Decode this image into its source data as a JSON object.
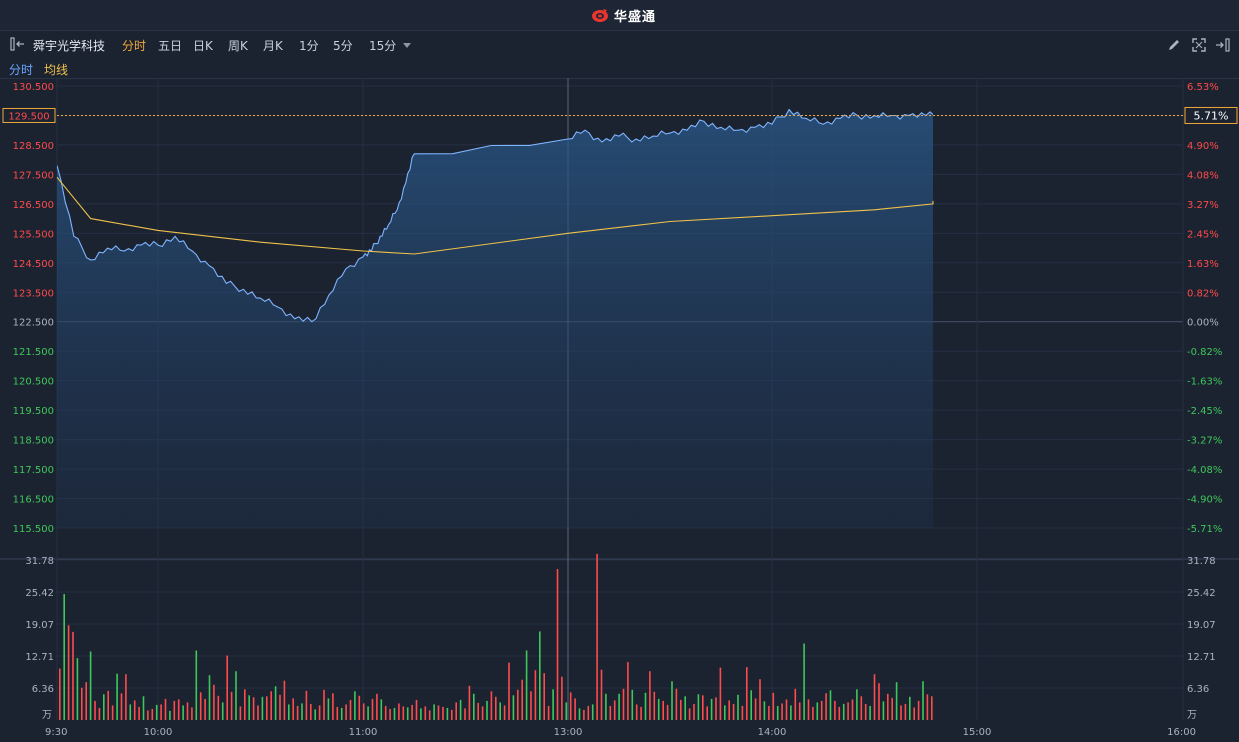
{
  "app": {
    "brand_name": "华盛通"
  },
  "toolbar": {
    "stock_name": "舜宇光学科技",
    "periods": [
      "分时",
      "五日",
      "日K",
      "周K",
      "月K",
      "1分",
      "5分",
      "15分"
    ],
    "active_period": "分时"
  },
  "legend": {
    "price_line": "分时",
    "avg_line": "均线"
  },
  "cursor": {
    "price_label": "129.500",
    "pct_label": "5.71%"
  },
  "colors": {
    "up": "#ff4b4b",
    "down": "#3ec85a",
    "price_line": "#7fb4ff",
    "avg_line": "#f0c24a",
    "accent": "#f0a93a"
  },
  "chart_data": [
    {
      "type": "line",
      "price_axis_left": [
        "130.500",
        "129.500",
        "128.500",
        "127.500",
        "126.500",
        "125.500",
        "124.500",
        "123.500",
        "122.500",
        "121.500",
        "120.500",
        "119.500",
        "118.500",
        "117.500",
        "116.500",
        "115.500"
      ],
      "pct_axis_right": [
        "6.53%",
        "5.71%",
        "4.90%",
        "4.08%",
        "3.27%",
        "2.45%",
        "1.63%",
        "0.82%",
        "0.00%",
        "-0.82%",
        "-1.63%",
        "-2.45%",
        "-3.27%",
        "-4.08%",
        "-4.90%",
        "-5.71%"
      ],
      "ylim": [
        115.5,
        130.5
      ],
      "prev_close": 122.5,
      "x_ticks": [
        "9:30",
        "10:00",
        "11:00",
        "13:00",
        "14:00",
        "15:00",
        "16:00"
      ],
      "series": [
        {
          "name": "分时",
          "x": [
            "9:30",
            "9:35",
            "9:40",
            "9:45",
            "9:50",
            "9:55",
            "10:00",
            "10:05",
            "10:10",
            "10:15",
            "10:20",
            "10:25",
            "10:30",
            "10:35",
            "10:40",
            "10:45",
            "10:50",
            "10:55",
            "11:00",
            "11:05",
            "11:10",
            "11:15",
            "11:20",
            "11:25",
            "11:30",
            "13:00",
            "13:05",
            "13:10",
            "13:15",
            "13:20",
            "13:25",
            "13:30",
            "13:35",
            "13:40",
            "13:45",
            "13:50",
            "13:55",
            "14:00",
            "14:05",
            "14:10",
            "14:15",
            "14:20",
            "14:25",
            "14:30",
            "14:35",
            "14:40",
            "14:45",
            "14:50",
            "14:55",
            "15:00",
            "15:05",
            "15:10",
            "15:15",
            "15:20",
            "15:25",
            "15:30",
            "15:35",
            "15:40",
            "15:45"
          ],
          "values": [
            127.8,
            125.4,
            124.6,
            125.0,
            124.9,
            125.1,
            125.1,
            125.4,
            124.9,
            124.4,
            123.8,
            123.6,
            123.3,
            123.0,
            122.6,
            122.5,
            123.4,
            124.3,
            124.7,
            124.9,
            125.4,
            125.8,
            126.3,
            127.2,
            128.2,
            128.7,
            129.0,
            128.6,
            128.8,
            128.7,
            128.8,
            128.9,
            129.0,
            129.3,
            129.1,
            129.0,
            129.1,
            129.2,
            129.7,
            129.4,
            129.2,
            129.4,
            129.5,
            129.5,
            129.5,
            129.5,
            129.5,
            129.5,
            129.5,
            129.5,
            129.5,
            129.5,
            129.5,
            129.5,
            129.5,
            129.5,
            129.5,
            129.5,
            129.5
          ]
        },
        {
          "name": "均线",
          "x": [
            "9:30",
            "9:40",
            "10:00",
            "10:30",
            "11:00",
            "11:30",
            "13:00",
            "13:30",
            "14:00",
            "14:30",
            "15:00",
            "15:45"
          ],
          "values": [
            127.4,
            126.0,
            125.6,
            125.2,
            124.9,
            124.8,
            125.5,
            125.9,
            126.1,
            126.3,
            126.5,
            126.6
          ]
        }
      ]
    },
    {
      "type": "bar",
      "y_ticks": [
        "31.78",
        "25.42",
        "19.07",
        "12.71",
        "6.36"
      ],
      "unit": "万",
      "ylim": [
        0,
        31.78
      ],
      "values": [
        10.2,
        25,
        18.8,
        17.5,
        12.3,
        6.4,
        7.5,
        13.6,
        3.8,
        2.4,
        5.1,
        5.8,
        2.9,
        9.2,
        5.3,
        9.1,
        3.1,
        3.9,
        2.6,
        4.7,
        1.9,
        2.2,
        3.0,
        3.1,
        4.2,
        1.8,
        3.8,
        4.1,
        2.9,
        3.5,
        2.5,
        13.8,
        5.5,
        4.2,
        8.9,
        7.0,
        4.8,
        3.5,
        12.8,
        5.6,
        9.7,
        2.7,
        6.1,
        4.9,
        4.5,
        2.9,
        4.6,
        4.7,
        5.7,
        6.7,
        5.0,
        7.8,
        3.1,
        4.3,
        2.8,
        3.3,
        5.8,
        3.2,
        2.1,
        2.9,
        6.0,
        4.3,
        5.3,
        2.6,
        2.4,
        3.1,
        4.0,
        5.7,
        4.8,
        3.3,
        2.7,
        4.2,
        5.2,
        4.1,
        2.8,
        2.2,
        2.4,
        3.3,
        2.7,
        2.5,
        3.0,
        4.0,
        2.3,
        2.7,
        1.9,
        3.1,
        2.9,
        2.6,
        2.4,
        2.0,
        3.5,
        4.0,
        2.3,
        6.8,
        5.2,
        3.4,
        2.7,
        3.8,
        5.7,
        4.6,
        3.5,
        2.9,
        11.4,
        4.9,
        6.0,
        8.0,
        13.8,
        5.7,
        9.9,
        17.6,
        9.3,
        2.8,
        6.1,
        30.0,
        8.6,
        3.5,
        5.5,
        4.3,
        2.3,
        2.0,
        2.8,
        3.1,
        33.0,
        10.0,
        5.2,
        2.8,
        3.9,
        5.2,
        6.2,
        11.5,
        6.0,
        3.1,
        2.6,
        5.4,
        9.7,
        5.6,
        4.2,
        3.8,
        3.0,
        7.7,
        6.2,
        4.0,
        4.7,
        2.3,
        3.2,
        5.1,
        4.9,
        2.7,
        4.2,
        4.5,
        10.4,
        2.9,
        3.9,
        3.2,
        5.0,
        2.8,
        10.5,
        5.9,
        4.3,
        8.1,
        3.7,
        2.8,
        5.4,
        2.8,
        3.3,
        4.1,
        2.9,
        6.2,
        3.5,
        15.2,
        4.1,
        2.6,
        3.5,
        3.8,
        5.3,
        5.9,
        3.8,
        2.6,
        3.2,
        3.5,
        4.1,
        6.1,
        4.7,
        3.2,
        2.8,
        9.1,
        7.3,
        3.7,
        5.2,
        4.4,
        7.5,
        2.9,
        3.2,
        4.6,
        2.5,
        3.8,
        7.7,
        5.1,
        4.7
      ],
      "colors": "alternating up/down"
    }
  ]
}
